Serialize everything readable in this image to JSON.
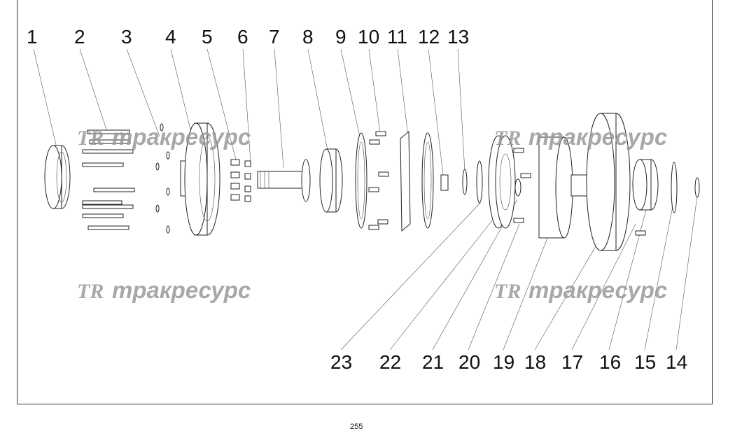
{
  "callouts_top": [
    "1",
    "2",
    "3",
    "4",
    "5",
    "6",
    "7",
    "8",
    "9",
    "10",
    "11",
    "12",
    "13"
  ],
  "callouts_bottom": [
    "23",
    "22",
    "21",
    "20",
    "19",
    "18",
    "17",
    "16",
    "15",
    "14"
  ],
  "watermark": {
    "logo": "TR",
    "text": "тракресурс"
  },
  "page_number": "255"
}
